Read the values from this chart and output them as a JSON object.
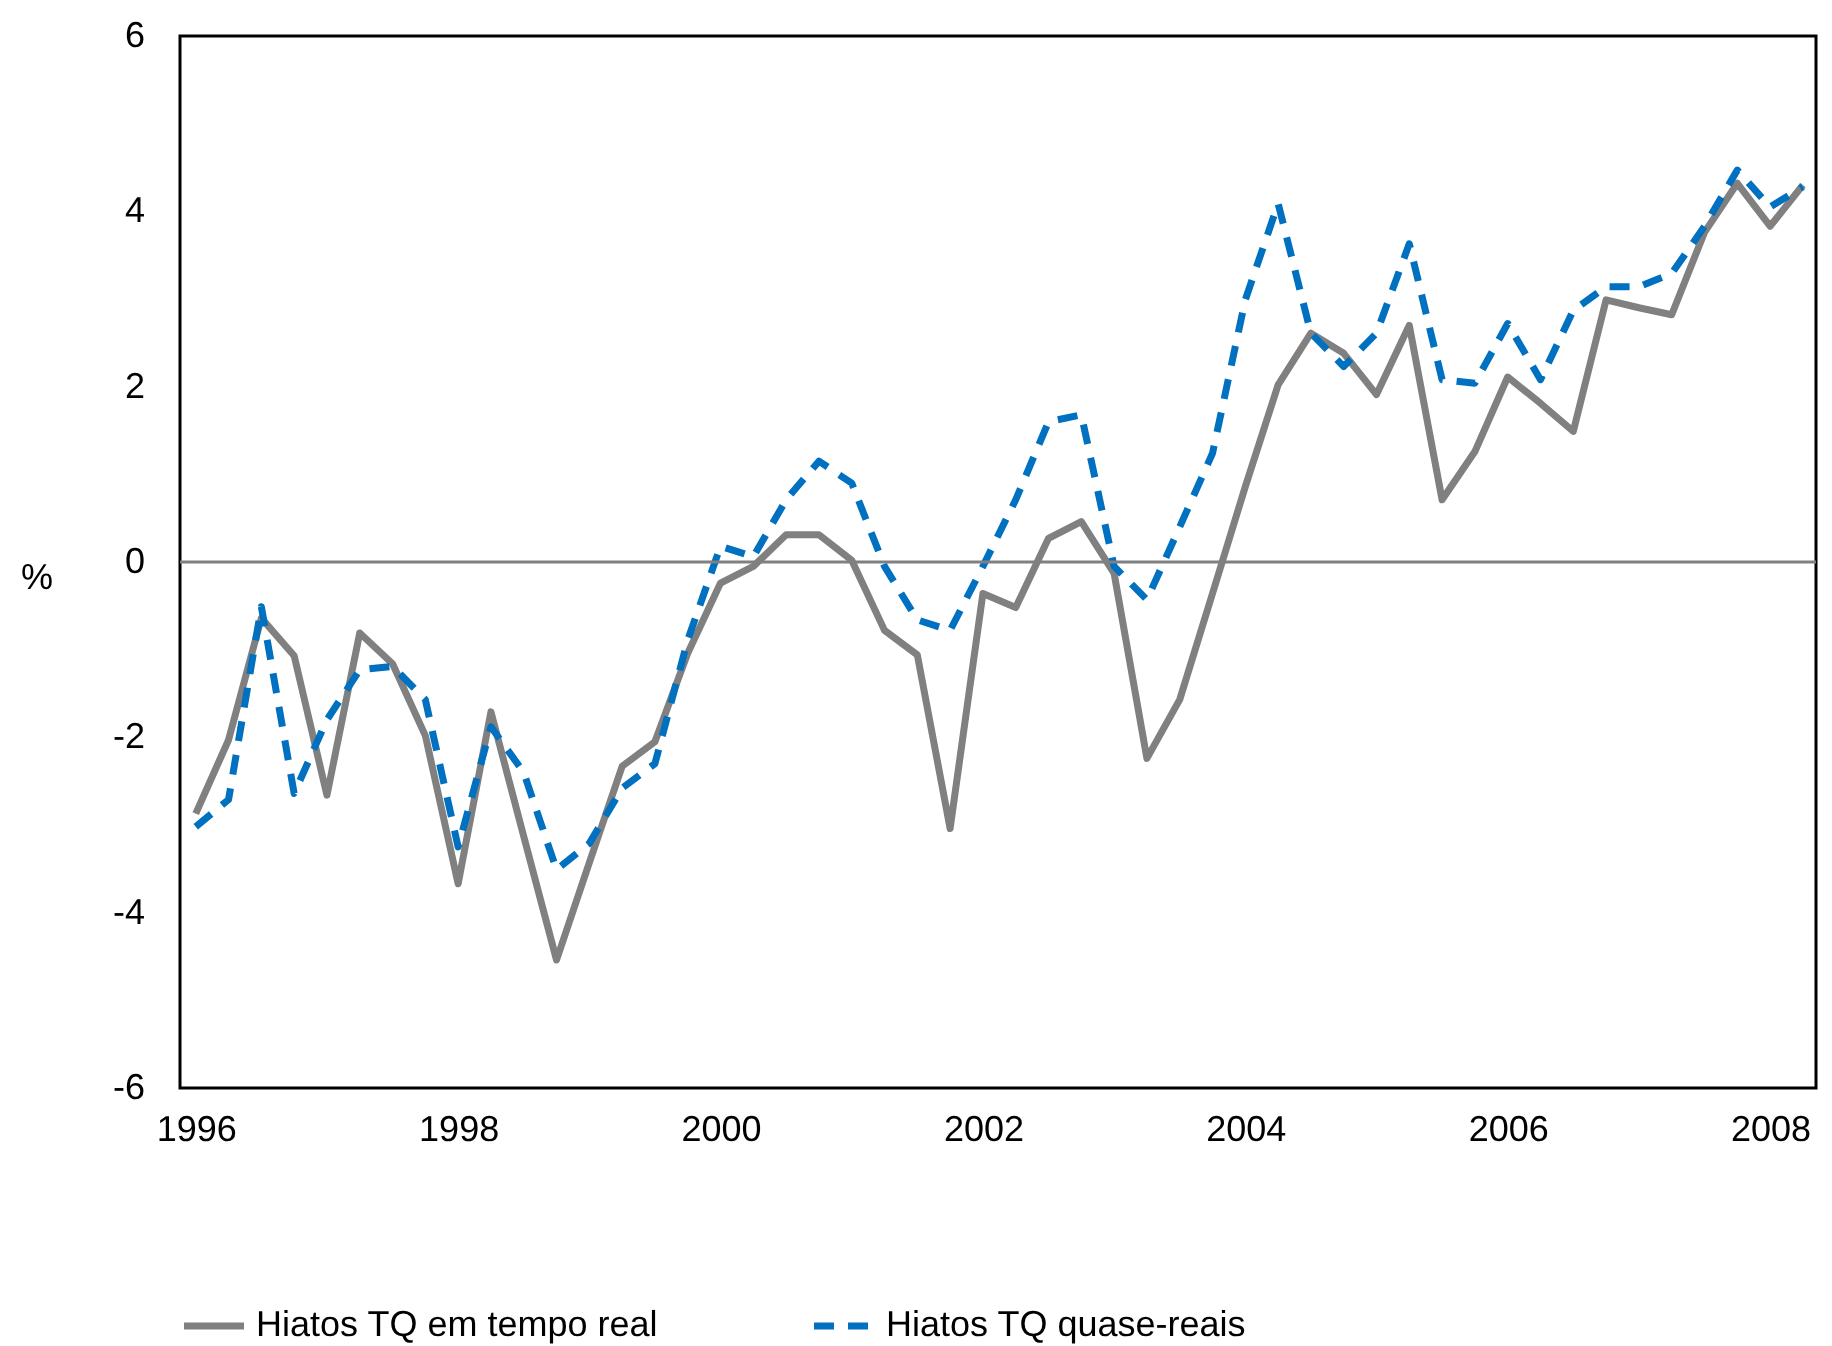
{
  "chart_data": {
    "type": "line",
    "ylabel": "%",
    "x": [
      1996,
      1996.25,
      1996.5,
      1996.75,
      1997,
      1997.25,
      1997.5,
      1997.75,
      1998,
      1998.25,
      1998.5,
      1998.75,
      1999,
      1999.25,
      1999.5,
      1999.75,
      2000,
      2000.25,
      2000.5,
      2000.75,
      2001,
      2001.25,
      2001.5,
      2001.75,
      2002,
      2002.25,
      2002.5,
      2002.75,
      2003,
      2003.25,
      2003.5,
      2003.75,
      2004,
      2004.25,
      2004.5,
      2004.75,
      2005,
      2005.25,
      2005.5,
      2005.75,
      2006,
      2006.25,
      2006.5,
      2006.75,
      2007,
      2007.25,
      2007.5,
      2007.75,
      2008,
      2008.25
    ],
    "series": [
      {
        "name": "Hiatos TQ em tempo real",
        "color": "#808080",
        "line_style": "solid",
        "values": [
          -2.87,
          -2.03,
          -0.64,
          -1.07,
          -2.66,
          -0.81,
          -1.16,
          -1.98,
          -3.67,
          -1.71,
          -3.13,
          -4.54,
          -3.43,
          -2.33,
          -2.05,
          -1.04,
          -0.24,
          -0.05,
          0.31,
          0.31,
          0.02,
          -0.78,
          -1.06,
          -3.04,
          -0.36,
          -0.52,
          0.27,
          0.46,
          -0.13,
          -2.24,
          -1.57,
          -0.36,
          0.86,
          2.02,
          2.61,
          2.38,
          1.91,
          2.7,
          0.71,
          1.26,
          2.11,
          1.81,
          1.49,
          2.99,
          2.9,
          2.82,
          3.76,
          4.32,
          3.83,
          4.3
        ]
      },
      {
        "name": "Hiatos TQ quase-reais",
        "color": "#0070c0",
        "line_style": "dashed",
        "values": [
          -3.02,
          -2.71,
          -0.51,
          -2.64,
          -1.8,
          -1.23,
          -1.19,
          -1.57,
          -3.25,
          -1.88,
          -2.4,
          -3.51,
          -3.21,
          -2.58,
          -2.3,
          -0.89,
          0.18,
          0.06,
          0.71,
          1.15,
          0.9,
          -0.05,
          -0.66,
          -0.78,
          -0.05,
          0.71,
          1.6,
          1.68,
          -0.05,
          -0.43,
          0.4,
          1.24,
          2.99,
          4.09,
          2.61,
          2.23,
          2.61,
          3.63,
          2.08,
          2.04,
          2.72,
          2.08,
          2.87,
          3.14,
          3.14,
          3.29,
          3.83,
          4.47,
          4.05,
          4.28
        ]
      }
    ],
    "xlim": [
      1995.88,
      2008.35
    ],
    "xticks": [
      1996,
      1998,
      2000,
      2002,
      2004,
      2006,
      2008
    ],
    "ylim": [
      -6,
      6
    ],
    "yticks": [
      -6,
      -4,
      -2,
      0,
      2,
      4,
      6
    ],
    "ref_lines": [
      {
        "axis": "y",
        "value": 0,
        "color": "#808080"
      }
    ],
    "grid": false,
    "legend": "bottom"
  }
}
